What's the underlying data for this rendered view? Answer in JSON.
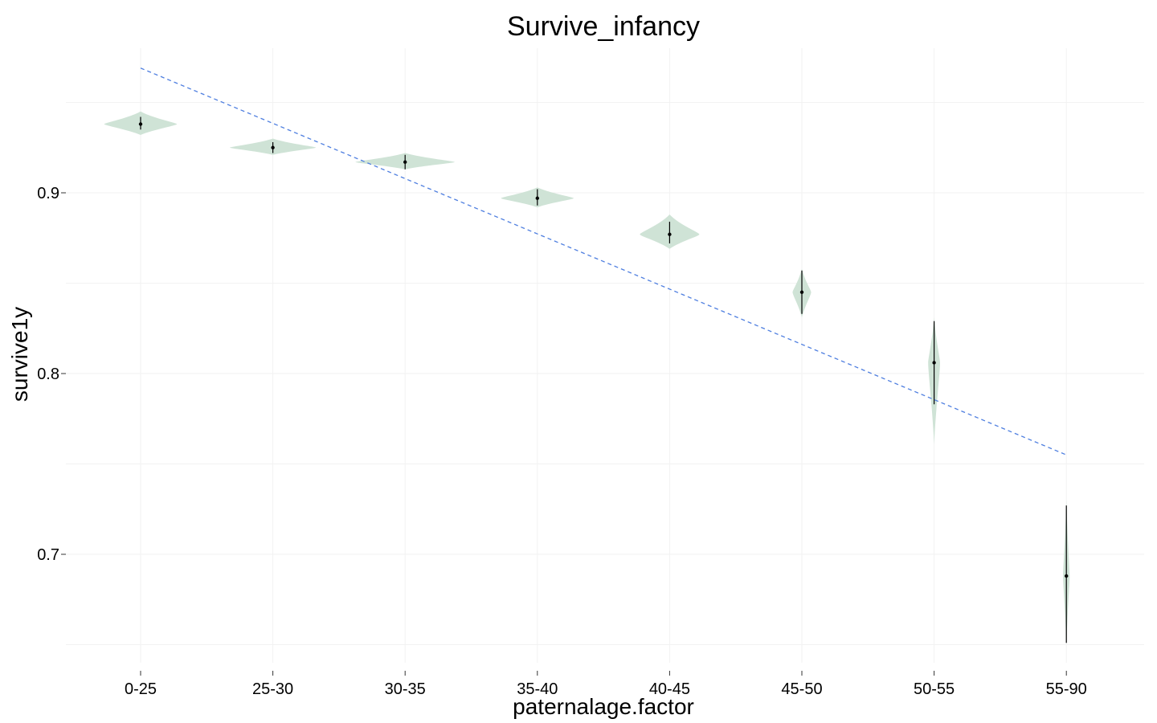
{
  "chart_data": {
    "type": "violin",
    "title": "Survive_infancy",
    "xlabel": "paternalage.factor",
    "ylabel": "survive1y",
    "categories": [
      "0-25",
      "25-30",
      "30-35",
      "35-40",
      "40-45",
      "45-50",
      "50-55",
      "55-90"
    ],
    "y_ticks": [
      0.7,
      0.8,
      0.9
    ],
    "y_tick_labels": [
      "0.7",
      "0.8",
      "0.9"
    ],
    "ylim": [
      0.64,
      0.98
    ],
    "grid": true,
    "violin_fill": "#cfe3d6",
    "violins": [
      {
        "category": "0-25",
        "median": 0.938,
        "ymin": 0.932,
        "ymax": 0.945,
        "line_low": 0.935,
        "line_high": 0.942,
        "halfwidth": 0.55
      },
      {
        "category": "25-30",
        "median": 0.925,
        "ymin": 0.921,
        "ymax": 0.93,
        "line_low": 0.922,
        "line_high": 0.928,
        "halfwidth": 0.65
      },
      {
        "category": "30-35",
        "median": 0.917,
        "ymin": 0.913,
        "ymax": 0.922,
        "line_low": 0.913,
        "line_high": 0.921,
        "halfwidth": 0.75
      },
      {
        "category": "35-40",
        "median": 0.897,
        "ymin": 0.892,
        "ymax": 0.903,
        "line_low": 0.893,
        "line_high": 0.902,
        "halfwidth": 0.55
      },
      {
        "category": "40-45",
        "median": 0.877,
        "ymin": 0.869,
        "ymax": 0.888,
        "line_low": 0.872,
        "line_high": 0.884,
        "halfwidth": 0.45
      },
      {
        "category": "45-50",
        "median": 0.845,
        "ymin": 0.831,
        "ymax": 0.858,
        "line_low": 0.833,
        "line_high": 0.857,
        "halfwidth": 0.14
      },
      {
        "category": "50-55",
        "median": 0.806,
        "ymin": 0.761,
        "ymax": 0.831,
        "line_low": 0.783,
        "line_high": 0.829,
        "halfwidth": 0.09
      },
      {
        "category": "55-90",
        "median": 0.688,
        "ymin": 0.65,
        "ymax": 0.73,
        "line_low": 0.651,
        "line_high": 0.727,
        "halfwidth": 0.05
      }
    ],
    "trend_line": {
      "style": "dashed",
      "color": "#4f7fe0",
      "x_start": 1,
      "y_start": 0.969,
      "x_end": 8,
      "y_end": 0.755
    }
  }
}
